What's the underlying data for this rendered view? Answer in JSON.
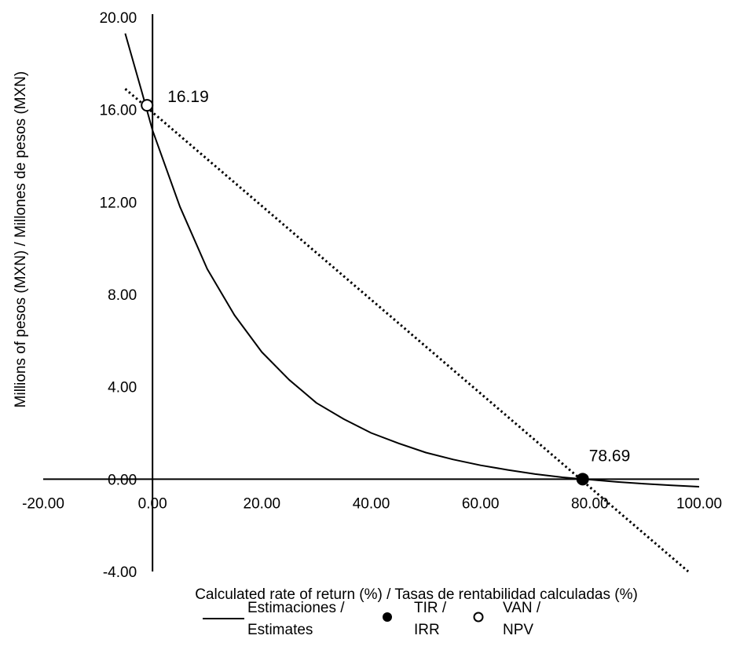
{
  "chart_data": {
    "type": "line",
    "title": "",
    "xlabel": "Calculated rate of return (%) / Tasas de rentabilidad calculadas (%)",
    "ylabel": "Millions of pesos (MXN) / Millones de pesos (MXN)",
    "xlim": [
      -20,
      100
    ],
    "ylim": [
      -4,
      20
    ],
    "x_ticks": [
      -20,
      0,
      20,
      40,
      60,
      80,
      100
    ],
    "x_tick_labels": [
      "-20.00",
      "0.00",
      "20.00",
      "40.00",
      "60.00",
      "80.00",
      "100.00"
    ],
    "y_ticks": [
      -4,
      0,
      4,
      8,
      12,
      16,
      20
    ],
    "y_tick_labels": [
      "-4.00",
      "0.00",
      "4.00",
      "8.00",
      "12.00",
      "16.00",
      "20.00"
    ],
    "grid": false,
    "legend_position": "bottom",
    "series": [
      {
        "name": "Estimaciones / Estimates",
        "style": "solid",
        "x": [
          -5,
          -2,
          0,
          5,
          10,
          15,
          20,
          25,
          30,
          35,
          40,
          45,
          50,
          55,
          60,
          65,
          70,
          75,
          78.69,
          80,
          85,
          90,
          95,
          100
        ],
        "values": [
          19.3,
          16.8,
          15.1,
          11.8,
          9.1,
          7.1,
          5.5,
          4.3,
          3.3,
          2.6,
          2.0,
          1.55,
          1.15,
          0.85,
          0.6,
          0.4,
          0.22,
          0.08,
          0.0,
          -0.02,
          -0.12,
          -0.2,
          -0.27,
          -0.33
        ]
      },
      {
        "name": "",
        "style": "dotted",
        "x": [
          -5,
          98
        ],
        "values": [
          16.9,
          -4.0
        ]
      }
    ],
    "points": [
      {
        "label": "VAN / NPV",
        "marker": "open-circle",
        "x": -1.0,
        "y": 16.19,
        "annotation": "16.19"
      },
      {
        "label": "TIR / IRR",
        "marker": "filled-circle",
        "x": 78.69,
        "y": 0.0,
        "annotation": "78.69"
      }
    ],
    "legend": [
      {
        "marker": "line",
        "line1": "Estimaciones /",
        "line2": "Estimates"
      },
      {
        "marker": "filled-circle",
        "line1": "TIR /",
        "line2": "IRR"
      },
      {
        "marker": "open-circle",
        "line1": "VAN /",
        "line2": "NPV"
      }
    ]
  }
}
